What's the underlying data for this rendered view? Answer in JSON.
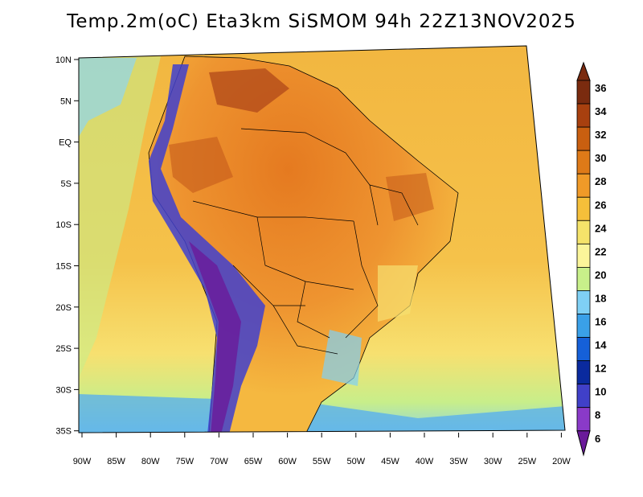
{
  "title": "Temp.2m(oC) Eta3km SiSMOM 94h 22Z13NOV2025",
  "map": {
    "lat_labels": [
      "10N",
      "5N",
      "EQ",
      "5S",
      "10S",
      "15S",
      "20S",
      "25S",
      "30S",
      "35S"
    ],
    "lon_labels": [
      "90W",
      "85W",
      "80W",
      "75W",
      "70W",
      "65W",
      "60W",
      "55W",
      "50W",
      "45W",
      "40W",
      "35W",
      "30W",
      "25W",
      "20W"
    ]
  },
  "colorbar": {
    "labels": [
      "36",
      "34",
      "32",
      "30",
      "28",
      "26",
      "24",
      "22",
      "20",
      "18",
      "16",
      "14",
      "12",
      "10",
      "8",
      "6"
    ],
    "colors": [
      "#7a2b0f",
      "#a8400f",
      "#c95f10",
      "#de7a18",
      "#f09a28",
      "#f5bf3a",
      "#f5e36a",
      "#fbf59a",
      "#c8f08a",
      "#7fd0f5",
      "#3aa0e8",
      "#1560d8",
      "#0a2a9e",
      "#4040c8",
      "#8a3ac8",
      "#6a1a9a"
    ]
  },
  "colors": {
    "ocean_outer": "#f5c850",
    "ocean_south": "#aee38a",
    "land_hot": "#e88a28",
    "land_warm": "#f0a030",
    "andes_cold": "#3f3fcf"
  }
}
